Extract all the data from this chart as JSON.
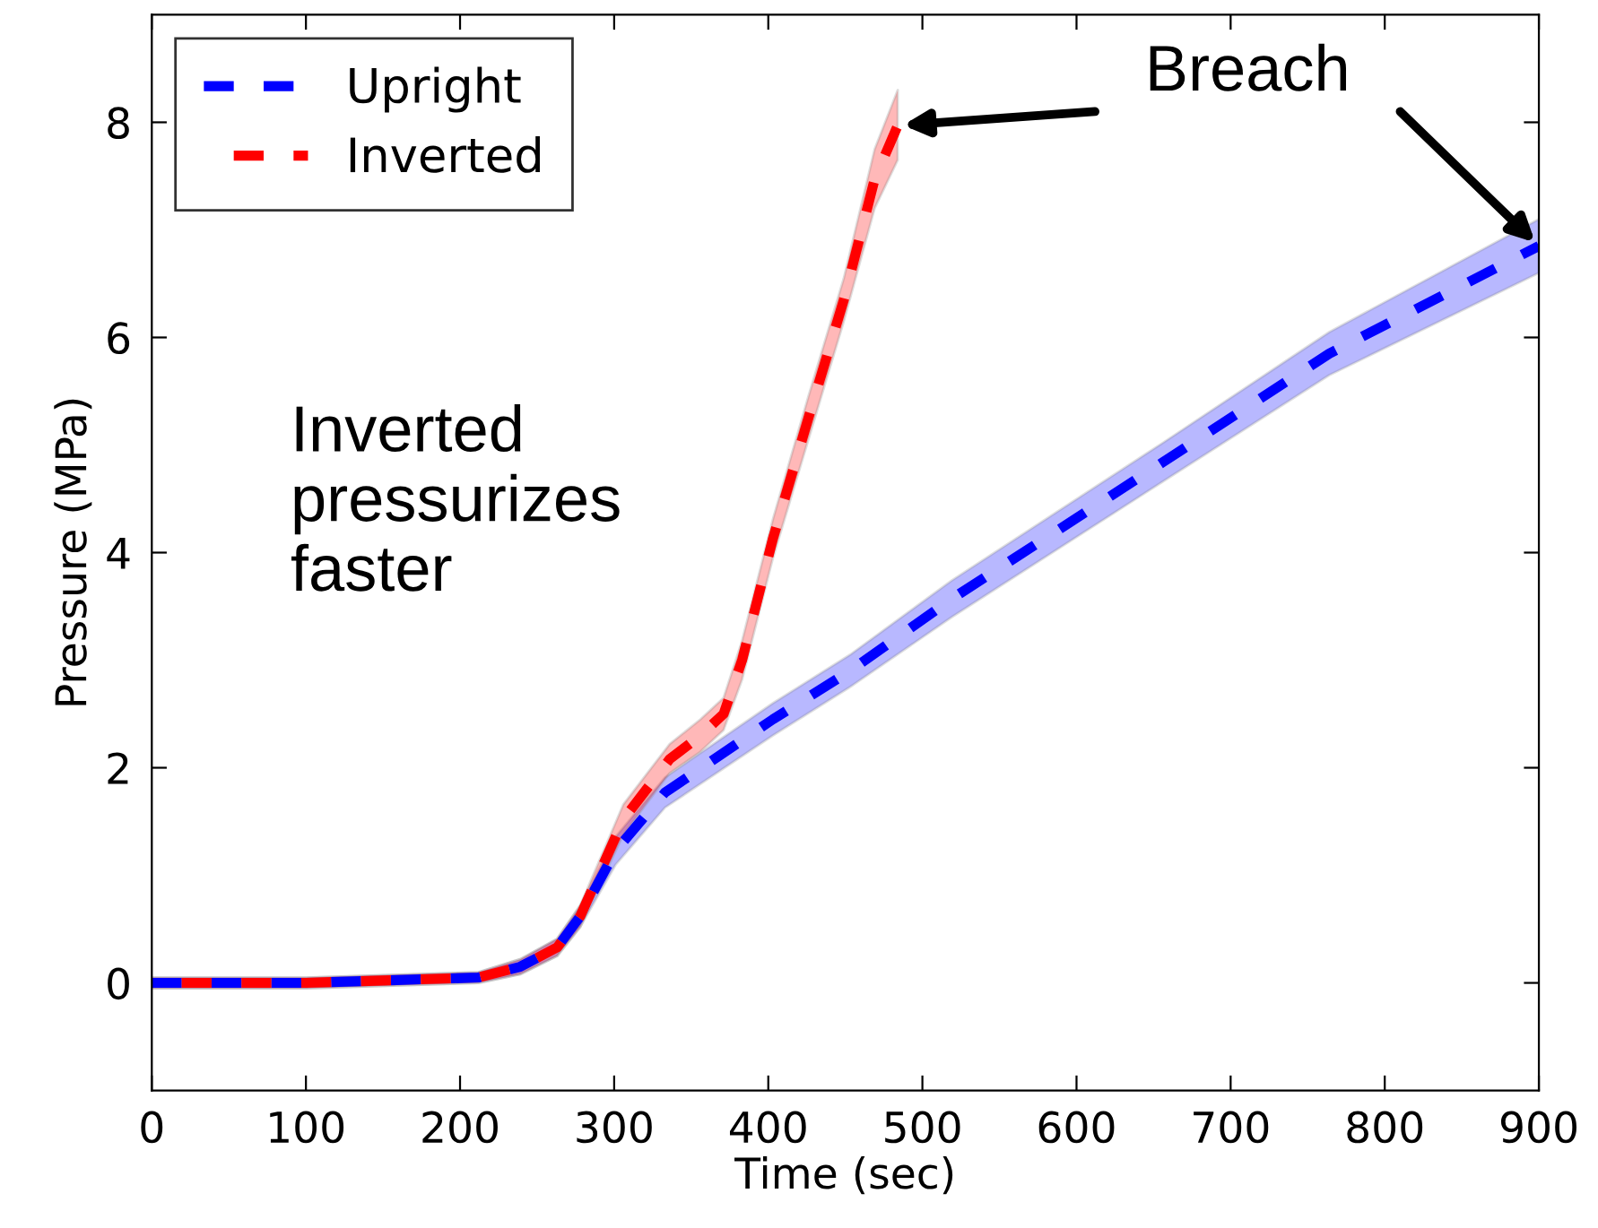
{
  "chart_data": {
    "type": "line",
    "xlabel": "Time (sec)",
    "ylabel": "Pressure (MPa)",
    "xlim": [
      0,
      900
    ],
    "xticks": [
      0,
      100,
      200,
      300,
      400,
      500,
      600,
      700,
      800,
      900
    ],
    "ylim": [
      -1,
      9
    ],
    "yticks": [
      0,
      2,
      4,
      6,
      8
    ],
    "grid": false,
    "legend": "top left",
    "line_style": "dashed",
    "marker": "none",
    "series": [
      {
        "name": "Upright",
        "color": "#0000ff",
        "x": [
          0,
          100,
          212,
          239,
          263,
          278,
          301,
          333,
          403,
          453,
          519,
          656,
          764,
          900
        ],
        "values": [
          0,
          0,
          0.05,
          0.15,
          0.33,
          0.62,
          1.23,
          1.77,
          2.45,
          2.9,
          3.57,
          4.84,
          5.85,
          6.85
        ],
        "lower": [
          -0.05,
          -0.05,
          0,
          0.08,
          0.25,
          0.52,
          1.1,
          1.63,
          2.3,
          2.75,
          3.4,
          4.66,
          5.65,
          6.6
        ],
        "upper": [
          0.05,
          0.05,
          0.1,
          0.22,
          0.41,
          0.72,
          1.36,
          1.91,
          2.6,
          3.05,
          3.74,
          5.02,
          6.05,
          7.1
        ]
      },
      {
        "name": "Inverted",
        "color": "#ff0000",
        "x": [
          0,
          100,
          212,
          239,
          263,
          278,
          306,
          336,
          356,
          371,
          383,
          403,
          426,
          449,
          469,
          484
        ],
        "values": [
          0,
          0,
          0.05,
          0.15,
          0.33,
          0.62,
          1.52,
          2.08,
          2.3,
          2.5,
          3.0,
          4.13,
          5.25,
          6.35,
          7.47,
          7.97
        ],
        "lower": [
          -0.05,
          -0.05,
          0,
          0.08,
          0.25,
          0.52,
          1.38,
          1.95,
          2.15,
          2.35,
          2.82,
          3.95,
          5.05,
          6.15,
          7.2,
          7.65
        ],
        "upper": [
          0.05,
          0.05,
          0.1,
          0.22,
          0.41,
          0.72,
          1.66,
          2.22,
          2.45,
          2.65,
          3.18,
          4.31,
          5.45,
          6.55,
          7.75,
          8.3
        ]
      }
    ],
    "annotations": [
      "Breach",
      "Inverted\npressurizes\nfaster"
    ]
  }
}
